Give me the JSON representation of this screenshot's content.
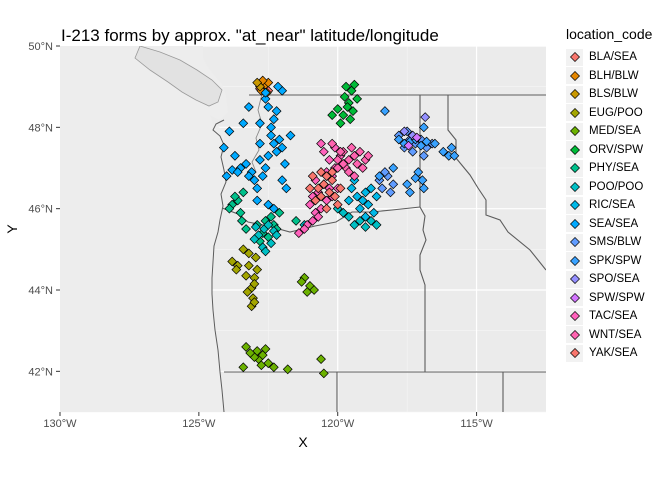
{
  "title": "I-213 forms by approx. \"at_near\" latitude/longitude",
  "chart_data": {
    "type": "scatter",
    "title": "I-213 forms by approx. \"at_near\" latitude/longitude",
    "xlabel": "X",
    "ylabel": "Y",
    "xlim": [
      -130,
      -112.5
    ],
    "ylim": [
      41,
      50
    ],
    "x_ticks": [
      {
        "value": -130,
        "label": "130°W"
      },
      {
        "value": -125,
        "label": "125°W"
      },
      {
        "value": -120,
        "label": "120°W"
      },
      {
        "value": -115,
        "label": "115°W"
      }
    ],
    "y_ticks": [
      {
        "value": 50,
        "label": "50°N"
      },
      {
        "value": 48,
        "label": "48°N"
      },
      {
        "value": 46,
        "label": "46°N"
      },
      {
        "value": 44,
        "label": "44°N"
      },
      {
        "value": 42,
        "label": "42°N"
      }
    ],
    "legend_title": "location_code",
    "legend_position": "right",
    "marker": "diamond",
    "grid": true,
    "series": [
      {
        "name": "BLA/SEA",
        "color": "#F8766D",
        "points": [
          [
            -122.5,
            48.9
          ],
          [
            -122.8,
            48.95
          ]
        ]
      },
      {
        "name": "BLH/BLW",
        "color": "#E58700",
        "points": [
          [
            -122.6,
            49.05
          ],
          [
            -122.75,
            48.9
          ],
          [
            -122.5,
            49.1
          ],
          [
            -122.7,
            49.15
          ]
        ]
      },
      {
        "name": "BLS/BLW",
        "color": "#C99800",
        "points": [
          [
            -122.8,
            49.0
          ],
          [
            -122.55,
            48.85
          ],
          [
            -122.9,
            49.1
          ]
        ]
      },
      {
        "name": "EUG/POO",
        "color": "#A3A500",
        "points": [
          [
            -123.1,
            44.05
          ],
          [
            -123.0,
            44.3
          ],
          [
            -123.2,
            44.6
          ],
          [
            -123.05,
            43.8
          ],
          [
            -123.25,
            43.95
          ],
          [
            -123.0,
            44.15
          ],
          [
            -122.9,
            44.5
          ],
          [
            -123.3,
            44.35
          ],
          [
            -123.1,
            43.6
          ],
          [
            -123.0,
            43.7
          ],
          [
            -122.95,
            44.8
          ],
          [
            -123.2,
            44.9
          ],
          [
            -123.4,
            45.0
          ],
          [
            -123.6,
            44.6
          ],
          [
            -123.8,
            44.7
          ],
          [
            -123.65,
            44.5
          ]
        ]
      },
      {
        "name": "MED/SEA",
        "color": "#6BB100",
        "points": [
          [
            -122.85,
            42.3
          ],
          [
            -122.7,
            42.4
          ],
          [
            -122.5,
            42.2
          ],
          [
            -122.9,
            42.5
          ],
          [
            -122.6,
            42.55
          ],
          [
            -123.0,
            42.35
          ],
          [
            -122.75,
            42.15
          ],
          [
            -123.3,
            42.6
          ],
          [
            -123.15,
            42.45
          ],
          [
            -122.3,
            42.1
          ],
          [
            -121.8,
            42.05
          ],
          [
            -121.0,
            44.1
          ],
          [
            -121.2,
            44.3
          ],
          [
            -121.3,
            44.2
          ],
          [
            -120.85,
            44.0
          ],
          [
            -121.1,
            43.95
          ],
          [
            -120.5,
            41.95
          ],
          [
            -120.6,
            42.3
          ],
          [
            -123.4,
            42.1
          ]
        ]
      },
      {
        "name": "ORV/SPW",
        "color": "#00BA38",
        "points": [
          [
            -119.6,
            48.6
          ],
          [
            -119.5,
            48.9
          ],
          [
            -119.7,
            49.0
          ],
          [
            -119.45,
            48.4
          ],
          [
            -119.3,
            48.7
          ],
          [
            -119.55,
            48.2
          ],
          [
            -119.65,
            48.5
          ],
          [
            -119.8,
            48.3
          ],
          [
            -119.4,
            49.05
          ],
          [
            -119.9,
            48.1
          ],
          [
            -120.2,
            48.3
          ],
          [
            -120.0,
            48.45
          ],
          [
            -119.75,
            48.75
          ]
        ]
      },
      {
        "name": "PHY/SEA",
        "color": "#00C08B",
        "points": [
          [
            -123.4,
            46.4
          ],
          [
            -123.6,
            46.2
          ],
          [
            -123.8,
            46.1
          ],
          [
            -123.5,
            45.9
          ],
          [
            -123.7,
            46.3
          ],
          [
            -123.9,
            46.0
          ],
          [
            -123.45,
            45.7
          ],
          [
            -123.3,
            45.5
          ],
          [
            -122.9,
            45.6
          ],
          [
            -122.7,
            45.4
          ],
          [
            -122.5,
            45.3
          ],
          [
            -122.3,
            45.6
          ],
          [
            -122.6,
            45.7
          ],
          [
            -122.8,
            45.2
          ],
          [
            -122.4,
            45.8
          ],
          [
            -121.5,
            45.7
          ],
          [
            -122.1,
            45.9
          ],
          [
            -122.2,
            45.5
          ]
        ]
      },
      {
        "name": "POO/POO",
        "color": "#00BFC4",
        "points": [
          [
            -122.65,
            45.5
          ],
          [
            -122.5,
            45.6
          ],
          [
            -122.85,
            45.35
          ],
          [
            -122.3,
            45.45
          ],
          [
            -122.7,
            45.05
          ],
          [
            -123.0,
            45.25
          ],
          [
            -122.6,
            44.95
          ],
          [
            -122.4,
            45.15
          ],
          [
            -122.95,
            45.55
          ],
          [
            -122.2,
            45.35
          ],
          [
            -119.6,
            45.8
          ],
          [
            -119.4,
            45.6
          ],
          [
            -119.2,
            45.7
          ],
          [
            -119.0,
            45.55
          ],
          [
            -118.8,
            45.7
          ],
          [
            -118.6,
            45.6
          ],
          [
            -119.8,
            45.9
          ],
          [
            -120.0,
            46.0
          ],
          [
            -121.2,
            45.6
          ]
        ]
      },
      {
        "name": "RIC/SEA",
        "color": "#00B8E7",
        "points": [
          [
            -119.3,
            46.3
          ],
          [
            -119.1,
            46.2
          ],
          [
            -119.0,
            46.4
          ],
          [
            -118.9,
            46.1
          ],
          [
            -119.5,
            46.5
          ],
          [
            -119.2,
            46.0
          ],
          [
            -119.4,
            46.7
          ],
          [
            -118.8,
            46.5
          ],
          [
            -118.7,
            45.9
          ],
          [
            -119.6,
            46.2
          ],
          [
            -119.0,
            45.8
          ],
          [
            -118.6,
            46.3
          ]
        ]
      },
      {
        "name": "SEA/SEA",
        "color": "#00A9FF",
        "points": [
          [
            -122.3,
            47.6
          ],
          [
            -122.2,
            47.4
          ],
          [
            -122.4,
            47.8
          ],
          [
            -122.5,
            47.3
          ],
          [
            -122.6,
            47.0
          ],
          [
            -122.8,
            47.2
          ],
          [
            -122.1,
            47.7
          ],
          [
            -122.0,
            47.5
          ],
          [
            -122.3,
            48.2
          ],
          [
            -122.5,
            48.5
          ],
          [
            -122.4,
            48.0
          ],
          [
            -122.6,
            48.7
          ],
          [
            -122.2,
            48.4
          ],
          [
            -122.7,
            46.8
          ],
          [
            -122.9,
            46.5
          ],
          [
            -123.1,
            46.9
          ],
          [
            -123.3,
            47.1
          ],
          [
            -123.5,
            47.0
          ],
          [
            -123.8,
            46.95
          ],
          [
            -123.0,
            46.7
          ],
          [
            -122.8,
            48.1
          ],
          [
            -123.4,
            48.1
          ],
          [
            -123.9,
            47.9
          ],
          [
            -124.1,
            47.5
          ],
          [
            -123.7,
            47.3
          ],
          [
            -122.0,
            48.9
          ],
          [
            -122.15,
            49.0
          ],
          [
            -121.9,
            47.1
          ],
          [
            -122.0,
            46.7
          ],
          [
            -122.6,
            48.85
          ],
          [
            -122.8,
            47.6
          ],
          [
            -121.7,
            47.8
          ],
          [
            -124.0,
            46.8
          ],
          [
            -123.6,
            46.9
          ],
          [
            -123.2,
            46.8
          ],
          [
            -122.9,
            46.2
          ],
          [
            -122.5,
            46.1
          ],
          [
            -122.3,
            46.0
          ],
          [
            -123.2,
            48.5
          ],
          [
            -121.85,
            46.5
          ]
        ]
      },
      {
        "name": "SMS/BLW",
        "color": "#619CFF",
        "points": [
          [
            -118.2,
            46.8
          ],
          [
            -118.4,
            46.5
          ],
          [
            -118.0,
            46.6
          ],
          [
            -118.3,
            46.9
          ],
          [
            -118.5,
            46.7
          ],
          [
            -118.1,
            46.4
          ],
          [
            -117.4,
            47.7
          ],
          [
            -117.6,
            47.5
          ],
          [
            -117.2,
            47.6
          ],
          [
            -117.0,
            47.7
          ],
          [
            -116.8,
            47.5
          ],
          [
            -116.6,
            47.6
          ],
          [
            -117.8,
            47.8
          ],
          [
            -117.5,
            47.9
          ],
          [
            -116.9,
            47.3
          ],
          [
            -117.3,
            47.4
          ]
        ]
      },
      {
        "name": "SPK/SPW",
        "color": "#39A2FF",
        "points": [
          [
            -117.4,
            47.65
          ],
          [
            -117.2,
            47.7
          ],
          [
            -117.6,
            47.6
          ],
          [
            -117.0,
            47.55
          ],
          [
            -117.8,
            47.7
          ],
          [
            -116.8,
            47.65
          ],
          [
            -116.5,
            47.6
          ],
          [
            -116.2,
            47.4
          ],
          [
            -115.9,
            47.5
          ],
          [
            -116.0,
            47.3
          ],
          [
            -117.1,
            46.9
          ],
          [
            -116.95,
            46.7
          ],
          [
            -117.2,
            46.75
          ],
          [
            -116.9,
            46.5
          ],
          [
            -117.5,
            46.6
          ],
          [
            -118.5,
            46.8
          ],
          [
            -118.0,
            47.0
          ],
          [
            -116.9,
            48.0
          ],
          [
            -118.3,
            48.4
          ],
          [
            -115.8,
            47.3
          ],
          [
            -117.4,
            46.4
          ]
        ]
      },
      {
        "name": "SPO/SEA",
        "color": "#9590FF",
        "points": [
          [
            -117.6,
            47.9
          ],
          [
            -117.3,
            47.8
          ],
          [
            -116.85,
            48.25
          ]
        ]
      },
      {
        "name": "SPW/SPW",
        "color": "#D376FF",
        "points": [
          [
            -117.15,
            47.75
          ],
          [
            -117.45,
            47.55
          ]
        ]
      },
      {
        "name": "TAC/SEA",
        "color": "#FF62BC",
        "points": [
          [
            -120.5,
            46.6
          ],
          [
            -120.7,
            46.4
          ],
          [
            -120.3,
            46.5
          ],
          [
            -120.8,
            46.7
          ],
          [
            -120.4,
            46.2
          ],
          [
            -120.6,
            46.0
          ],
          [
            -120.9,
            46.3
          ],
          [
            -121.0,
            46.1
          ],
          [
            -120.2,
            46.8
          ],
          [
            -120.1,
            47.0
          ],
          [
            -120.3,
            47.2
          ],
          [
            -120.5,
            47.4
          ],
          [
            -120.6,
            47.6
          ],
          [
            -120.1,
            47.5
          ],
          [
            -119.9,
            47.3
          ],
          [
            -120.8,
            45.9
          ],
          [
            -120.9,
            45.7
          ],
          [
            -121.1,
            45.6
          ],
          [
            -121.2,
            45.5
          ],
          [
            -120.7,
            45.8
          ],
          [
            -121.4,
            45.4
          ],
          [
            -120.2,
            46.3
          ],
          [
            -120.0,
            46.5
          ],
          [
            -120.4,
            46.9
          ]
        ]
      },
      {
        "name": "WNT/SEA",
        "color": "#FF64B0",
        "points": [
          [
            -119.8,
            47.4
          ],
          [
            -119.6,
            47.2
          ],
          [
            -119.4,
            47.3
          ],
          [
            -119.7,
            47.0
          ],
          [
            -119.5,
            47.5
          ],
          [
            -119.3,
            47.1
          ],
          [
            -119.2,
            47.4
          ],
          [
            -119.0,
            47.2
          ],
          [
            -119.8,
            47.1
          ],
          [
            -119.6,
            46.9
          ],
          [
            -120.0,
            47.0
          ],
          [
            -119.1,
            47.0
          ],
          [
            -118.9,
            47.3
          ],
          [
            -119.9,
            47.4
          ],
          [
            -120.2,
            47.6
          ],
          [
            -119.4,
            46.8
          ],
          [
            -120.0,
            47.2
          ]
        ]
      },
      {
        "name": "YAK/SEA",
        "color": "#F8766D",
        "points": [
          [
            -120.5,
            46.6
          ],
          [
            -120.3,
            46.4
          ],
          [
            -120.7,
            46.5
          ],
          [
            -120.2,
            46.7
          ],
          [
            -120.4,
            46.8
          ],
          [
            -120.6,
            46.3
          ],
          [
            -120.1,
            46.3
          ],
          [
            -120.0,
            46.1
          ],
          [
            -119.9,
            46.5
          ],
          [
            -120.8,
            46.2
          ],
          [
            -120.4,
            46.0
          ],
          [
            -121.0,
            46.5
          ],
          [
            -120.9,
            46.8
          ],
          [
            -120.2,
            46.9
          ],
          [
            -120.6,
            46.9
          ]
        ]
      }
    ]
  }
}
